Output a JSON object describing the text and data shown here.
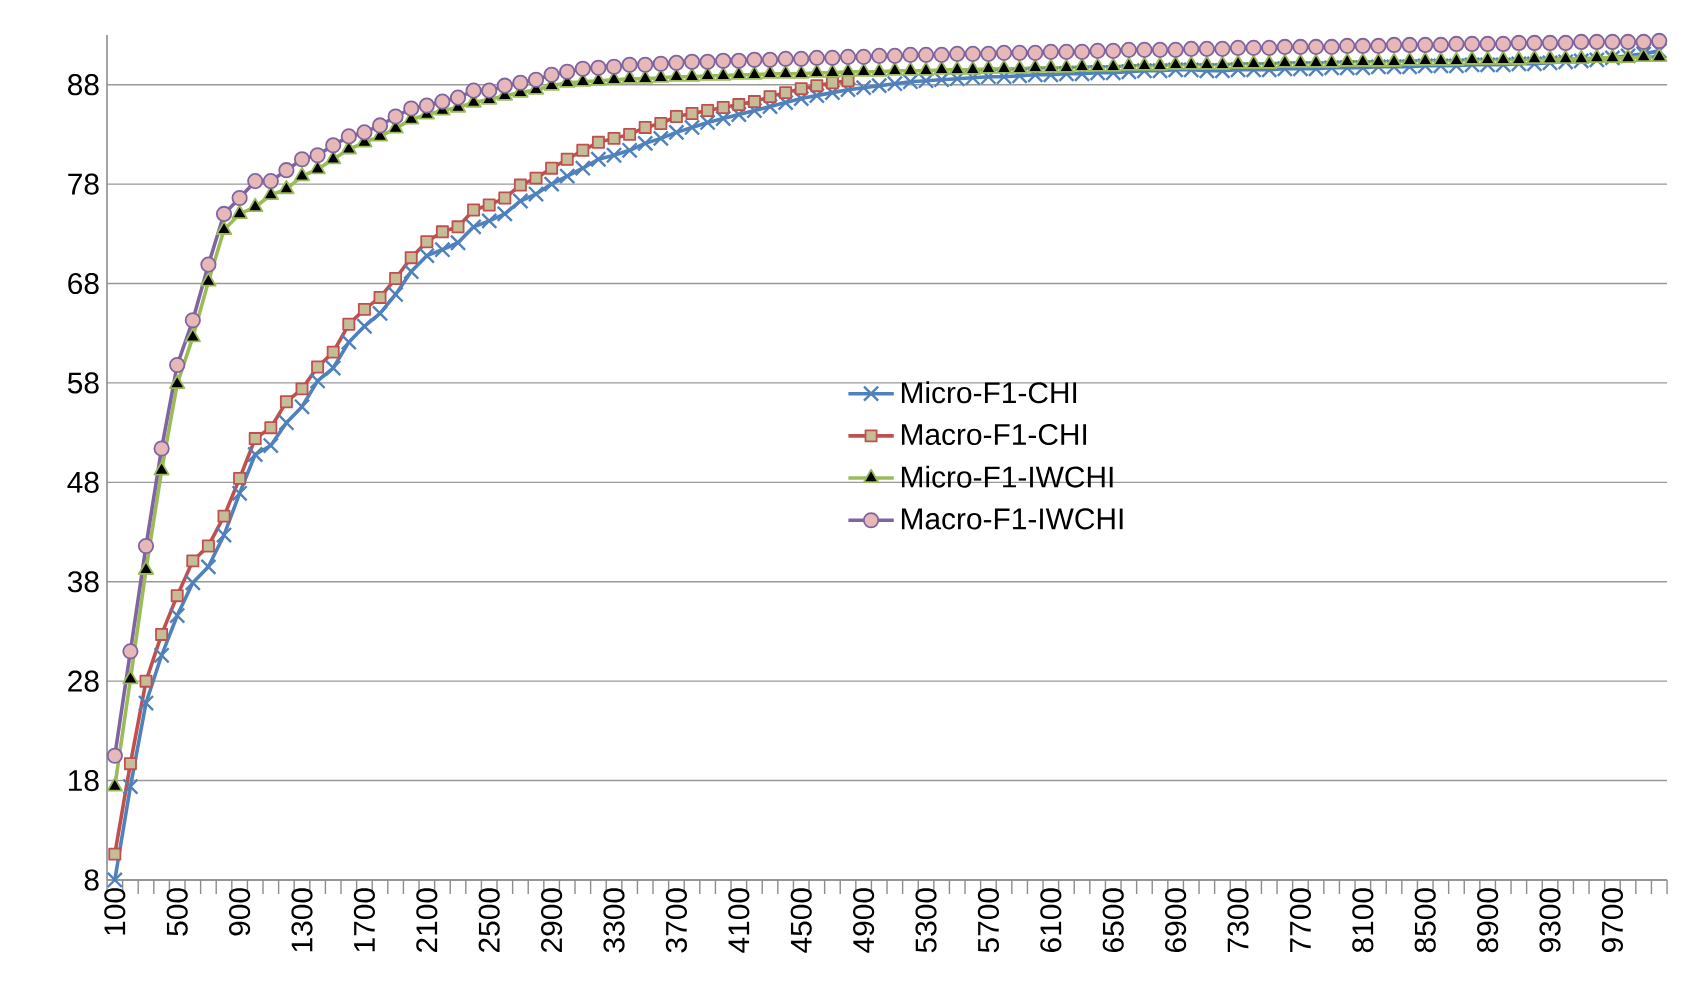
{
  "chart_data": {
    "type": "line",
    "categories": [
      "100",
      null,
      null,
      null,
      "500",
      null,
      null,
      null,
      "900",
      null,
      null,
      null,
      "1300",
      null,
      null,
      null,
      "1700",
      null,
      null,
      null,
      "2100",
      null,
      null,
      null,
      "2500",
      null,
      null,
      null,
      "2900",
      null,
      null,
      null,
      "3300",
      null,
      null,
      null,
      "3700",
      null,
      null,
      null,
      "4100",
      null,
      null,
      null,
      "4500",
      null,
      null,
      null,
      "4900",
      null,
      null,
      null,
      "5300",
      null,
      null,
      null,
      "5700",
      null,
      null,
      null,
      "6100",
      null,
      null,
      null,
      "6500",
      null,
      null,
      null,
      "6900",
      null,
      null,
      null,
      "7300",
      null,
      null,
      null,
      "7700",
      null,
      null,
      null,
      "8100",
      null,
      null,
      null,
      "8500",
      null,
      null,
      null,
      "8900",
      null,
      null,
      null,
      "9300",
      null,
      null,
      null,
      "9700",
      null,
      null,
      null
    ],
    "series": [
      {
        "name": "Micro-F1-CHI",
        "color": "#4f81bd",
        "marker": "cross",
        "values": [
          8,
          17.4,
          25.8,
          30.6,
          34.6,
          37.9,
          39.5,
          42.7,
          46.9,
          50.8,
          51.7,
          54,
          55.6,
          58.2,
          59.5,
          62.1,
          63.7,
          65,
          66.9,
          69.2,
          70.8,
          71.4,
          72.1,
          73.7,
          74.3,
          75,
          76.3,
          77,
          78,
          78.8,
          79.6,
          80.5,
          80.9,
          81.4,
          82.1,
          82.6,
          83.2,
          83.7,
          84.2,
          84.6,
          85,
          85.4,
          85.8,
          86.2,
          86.6,
          86.9,
          87.2,
          87.5,
          87.7,
          87.9,
          88.1,
          88.3,
          88.4,
          88.5,
          88.6,
          88.7,
          88.8,
          88.8,
          88.9,
          89,
          89,
          89.1,
          89.1,
          89.2,
          89.2,
          89.3,
          89.4,
          89.4,
          89.5,
          89.5,
          89.4,
          89.4,
          89.5,
          89.5,
          89.5,
          89.6,
          89.6,
          89.6,
          89.7,
          89.7,
          89.7,
          89.8,
          89.8,
          89.8,
          89.9,
          89.9,
          89.9,
          90,
          90,
          90,
          90.1,
          90.1,
          90.2,
          90.3,
          90.4,
          90.5,
          90.7,
          90.9,
          91.1,
          91.4
        ]
      },
      {
        "name": "Macro-F1-CHI",
        "color": "#c0504d",
        "marker": "square",
        "values": [
          10.6,
          19.7,
          28,
          32.7,
          36.6,
          40.1,
          41.6,
          44.6,
          48.4,
          52.4,
          53.5,
          56.1,
          57.4,
          59.6,
          61.1,
          63.9,
          65.4,
          66.6,
          68.5,
          70.6,
          72.2,
          73.2,
          73.7,
          75.4,
          75.9,
          76.6,
          77.9,
          78.6,
          79.6,
          80.5,
          81.4,
          82.2,
          82.6,
          83,
          83.7,
          84.1,
          84.8,
          85.1,
          85.4,
          85.7,
          86,
          86.3,
          86.8,
          87.2,
          87.6,
          87.9,
          88.2,
          88.4,
          null,
          null,
          null,
          null,
          null,
          null,
          null,
          null,
          null,
          null,
          null,
          null,
          null,
          null,
          null,
          null,
          null,
          null,
          null,
          null,
          null,
          null,
          null,
          null,
          null,
          null,
          null,
          null,
          null,
          null,
          null,
          null,
          null,
          null,
          null,
          null,
          null,
          null,
          null,
          null,
          null,
          null,
          null,
          null,
          null,
          null,
          null,
          null,
          null,
          null,
          null,
          null
        ]
      },
      {
        "name": "Micro-F1-IWCHI",
        "color": "#9bbb59",
        "marker": "triangle",
        "values": [
          17.4,
          28.2,
          39.2,
          49.2,
          57.9,
          62.6,
          68.2,
          73.4,
          75,
          75.7,
          76.9,
          77.5,
          78.8,
          79.5,
          80.5,
          81.5,
          82.2,
          82.8,
          83.6,
          84.5,
          85,
          85.4,
          85.7,
          86.2,
          86.5,
          86.9,
          87.2,
          87.5,
          87.9,
          88.2,
          88.3,
          88.4,
          88.5,
          88.6,
          88.6,
          88.7,
          88.8,
          88.8,
          88.9,
          88.9,
          89,
          89,
          89.1,
          89.1,
          89.1,
          89.2,
          89.2,
          89.3,
          89.3,
          89.3,
          89.4,
          89.4,
          89.4,
          89.5,
          89.5,
          89.5,
          89.6,
          89.6,
          89.6,
          89.7,
          89.7,
          89.7,
          89.8,
          89.8,
          89.8,
          89.9,
          89.9,
          89.9,
          90,
          90,
          90,
          90,
          90.1,
          90.1,
          90.1,
          90.2,
          90.2,
          90.2,
          90.2,
          90.3,
          90.3,
          90.3,
          90.3,
          90.4,
          90.4,
          90.4,
          90.4,
          90.5,
          90.5,
          90.5,
          90.5,
          90.6,
          90.6,
          90.6,
          90.6,
          90.7,
          90.7,
          90.7,
          90.8,
          90.8
        ]
      },
      {
        "name": "Macro-F1-IWCHI",
        "color": "#8064a2",
        "marker": "circle",
        "values": [
          20.5,
          31,
          41.6,
          51.4,
          59.8,
          64.3,
          69.9,
          75,
          76.6,
          78.3,
          78.3,
          79.4,
          80.5,
          80.9,
          81.9,
          82.8,
          83.2,
          83.9,
          84.8,
          85.6,
          85.9,
          86.3,
          86.7,
          87.4,
          87.4,
          87.9,
          88.2,
          88.5,
          89,
          89.3,
          89.6,
          89.7,
          89.8,
          90,
          90,
          90.1,
          90.2,
          90.3,
          90.3,
          90.4,
          90.4,
          90.5,
          90.5,
          90.6,
          90.6,
          90.7,
          90.7,
          90.8,
          90.8,
          90.9,
          90.9,
          91,
          91,
          91,
          91.1,
          91.1,
          91.1,
          91.2,
          91.2,
          91.2,
          91.3,
          91.3,
          91.3,
          91.4,
          91.4,
          91.5,
          91.5,
          91.5,
          91.5,
          91.6,
          91.6,
          91.6,
          91.7,
          91.7,
          91.7,
          91.8,
          91.8,
          91.8,
          91.8,
          91.9,
          91.9,
          91.9,
          92,
          92,
          92,
          92,
          92.1,
          92.1,
          92.1,
          92.1,
          92.2,
          92.2,
          92.2,
          92.2,
          92.3,
          92.3,
          92.3,
          92.3,
          92.3,
          92.4
        ]
      }
    ],
    "ylim": [
      8,
      93
    ],
    "yticks": [
      8,
      18,
      28,
      38,
      48,
      58,
      68,
      78,
      88
    ],
    "grid": "y",
    "legend": "center"
  }
}
